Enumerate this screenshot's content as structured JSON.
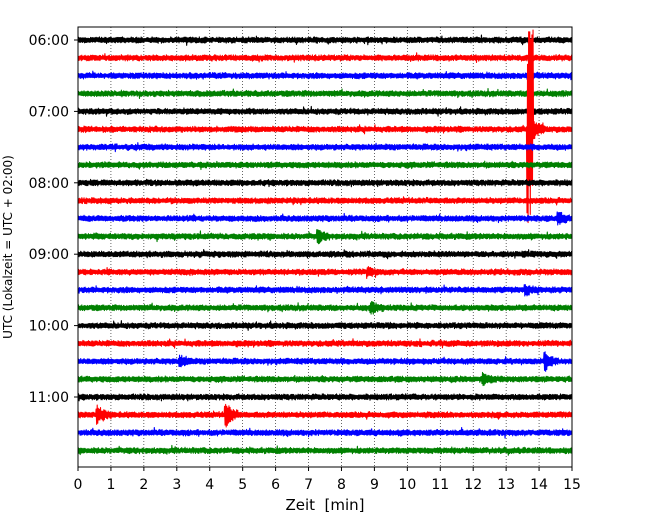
{
  "chart_data": {
    "type": "line",
    "title": "",
    "xlabel": "Zeit  [min]",
    "ylabel": "UTC (Lokalzeit = UTC + 02:00)",
    "xlim": [
      0,
      15
    ],
    "x_ticks": [
      "0",
      "1",
      "2",
      "3",
      "4",
      "5",
      "6",
      "7",
      "8",
      "9",
      "10",
      "11",
      "12",
      "13",
      "14",
      "15"
    ],
    "y_tick_labels": [
      "06:00",
      "07:00",
      "08:00",
      "09:00",
      "10:00",
      "11:00"
    ],
    "grid": "vertical-dotted",
    "trace_interval_minutes": 15,
    "trace_colors": [
      "#000000",
      "#ff0000",
      "#0000ff",
      "#008000"
    ],
    "traces": [
      {
        "start": "06:00",
        "color": "#000000",
        "events": []
      },
      {
        "start": "06:15",
        "color": "#ff0000",
        "events": []
      },
      {
        "start": "06:30",
        "color": "#0000ff",
        "events": []
      },
      {
        "start": "06:45",
        "color": "#008000",
        "events": []
      },
      {
        "start": "07:00",
        "color": "#000000",
        "events": []
      },
      {
        "start": "07:15",
        "color": "#ff0000",
        "events": [
          {
            "t": 13.7,
            "amp": 4.0
          }
        ]
      },
      {
        "start": "07:30",
        "color": "#0000ff",
        "events": []
      },
      {
        "start": "07:45",
        "color": "#008000",
        "events": []
      },
      {
        "start": "08:00",
        "color": "#000000",
        "events": []
      },
      {
        "start": "08:15",
        "color": "#ff0000",
        "events": []
      },
      {
        "start": "08:30",
        "color": "#0000ff",
        "events": [
          {
            "t": 14.6,
            "amp": 0.4
          }
        ]
      },
      {
        "start": "08:45",
        "color": "#008000",
        "events": [
          {
            "t": 7.3,
            "amp": 0.4
          }
        ]
      },
      {
        "start": "09:00",
        "color": "#000000",
        "events": []
      },
      {
        "start": "09:15",
        "color": "#ff0000",
        "events": [
          {
            "t": 8.8,
            "amp": 0.3
          }
        ]
      },
      {
        "start": "09:30",
        "color": "#0000ff",
        "events": [
          {
            "t": 13.6,
            "amp": 0.3
          }
        ]
      },
      {
        "start": "09:45",
        "color": "#008000",
        "events": [
          {
            "t": 8.9,
            "amp": 0.4
          }
        ]
      },
      {
        "start": "10:00",
        "color": "#000000",
        "events": []
      },
      {
        "start": "10:15",
        "color": "#ff0000",
        "events": []
      },
      {
        "start": "10:30",
        "color": "#0000ff",
        "events": [
          {
            "t": 3.1,
            "amp": 0.4
          },
          {
            "t": 14.2,
            "amp": 0.6
          }
        ]
      },
      {
        "start": "10:45",
        "color": "#008000",
        "events": [
          {
            "t": 12.3,
            "amp": 0.4
          }
        ]
      },
      {
        "start": "11:00",
        "color": "#000000",
        "events": []
      },
      {
        "start": "11:15",
        "color": "#ff0000",
        "events": [
          {
            "t": 0.6,
            "amp": 0.6
          },
          {
            "t": 4.5,
            "amp": 1.0
          }
        ]
      },
      {
        "start": "11:30",
        "color": "#0000ff",
        "events": []
      },
      {
        "start": "11:45",
        "color": "#008000",
        "events": []
      }
    ]
  }
}
